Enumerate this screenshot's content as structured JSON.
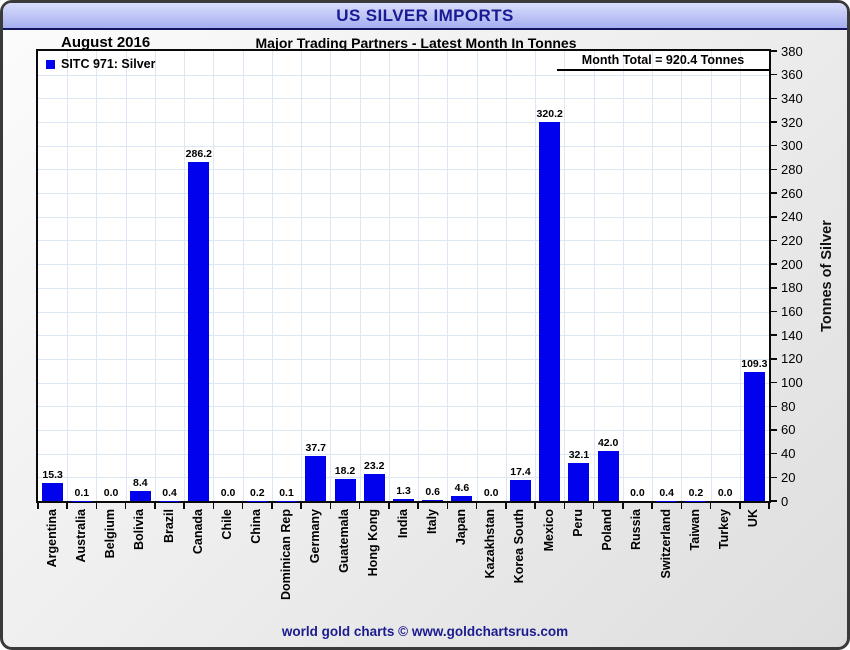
{
  "header": {
    "title": "US SILVER IMPORTS",
    "period": "August 2016",
    "subtitle": "Major Trading Partners - Latest Month In Tonnes"
  },
  "legend": {
    "label": "SITC 971: Silver"
  },
  "annotations": {
    "month_total": "Month Total = 920.4 Tonnes"
  },
  "footer": {
    "credit": "world gold charts © www.goldchartsrus.com"
  },
  "colors": {
    "bar": "#0101ee",
    "titlebar_top": "#d9ddfb",
    "titlebar_bottom": "#a6aff0",
    "title_text": "#1a1a94",
    "gridline": "#dbe7f5",
    "footer_text": "#1b1b8f"
  },
  "chart_data": {
    "type": "bar",
    "title": "US SILVER IMPORTS",
    "subtitle": "Major Trading Partners - Latest Month In Tonnes",
    "period": "August 2016",
    "categories": [
      "Argentina",
      "Australia",
      "Belgium",
      "Bolivia",
      "Brazil",
      "Canada",
      "Chile",
      "China",
      "Dominican Rep",
      "Germany",
      "Guatemala",
      "Hong Kong",
      "India",
      "Italy",
      "Japan",
      "Kazakhstan",
      "Korea South",
      "Mexico",
      "Peru",
      "Poland",
      "Russia",
      "Switzerland",
      "Taiwan",
      "Turkey",
      "UK"
    ],
    "values": [
      15.3,
      0.1,
      0.0,
      8.4,
      0.4,
      286.2,
      0.0,
      0.2,
      0.1,
      37.7,
      18.2,
      23.2,
      1.3,
      0.6,
      4.6,
      0.0,
      17.4,
      320.2,
      32.1,
      42.0,
      0.0,
      0.4,
      0.2,
      0.0,
      109.3
    ],
    "series_name": "SITC 971: Silver",
    "xlabel": "",
    "ylabel": "Tonnes of Silver",
    "ylim": [
      0,
      380
    ],
    "ytick_step": 20,
    "grid": true,
    "legend_position": "top-left",
    "value_labels": true,
    "month_total": 920.4
  }
}
